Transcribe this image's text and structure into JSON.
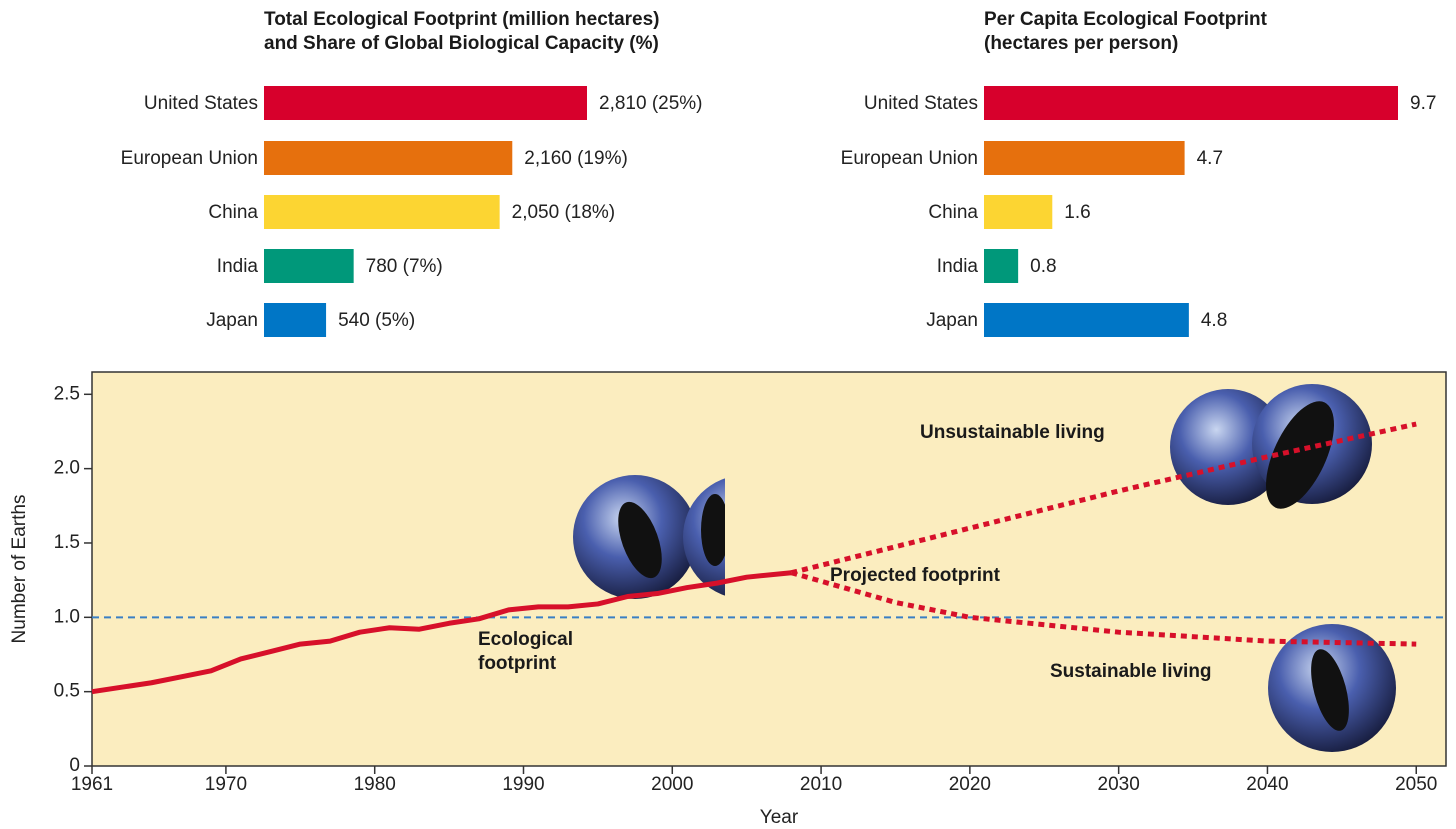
{
  "chart_data": [
    {
      "type": "bar",
      "orientation": "horizontal",
      "title": "Total Ecological Footprint (million hectares)\nand Share of Global Biological Capacity (%)",
      "categories": [
        "United States",
        "European Union",
        "China",
        "India",
        "Japan"
      ],
      "values": [
        2810,
        2160,
        2050,
        780,
        540
      ],
      "value_labels": [
        "2,810 (25%)",
        "2,160 (19%)",
        "2,050 (18%)",
        "780 (7%)",
        "540 (5%)"
      ],
      "colors": [
        "#d7002c",
        "#e6700d",
        "#fcd532",
        "#00987a",
        "#0076c6"
      ]
    },
    {
      "type": "bar",
      "orientation": "horizontal",
      "title": "Per Capita Ecological Footprint\n(hectares per person)",
      "categories": [
        "United States",
        "European Union",
        "China",
        "India",
        "Japan"
      ],
      "values": [
        9.7,
        4.7,
        1.6,
        0.8,
        4.8
      ],
      "colors": [
        "#d7002c",
        "#e6700d",
        "#fcd532",
        "#00987a",
        "#0076c6"
      ]
    },
    {
      "type": "line",
      "xlabel": "Year",
      "ylabel": "Number of Earths",
      "xlim": [
        1961,
        2052
      ],
      "ylim": [
        0,
        2.65
      ],
      "xticks": [
        1961,
        1970,
        1980,
        1990,
        2000,
        2010,
        2020,
        2030,
        2040,
        2050
      ],
      "yticks": [
        0,
        0.5,
        {
          "value": 1,
          "label": "1.0"
        },
        1.5,
        {
          "value": 2,
          "label": "2.0"
        },
        2.5
      ],
      "background": "#fbedbf",
      "series": [
        {
          "name": "Ecological footprint",
          "color": "#d7102a",
          "style": "solid",
          "x": [
            1961,
            1963,
            1965,
            1967,
            1969,
            1971,
            1973,
            1975,
            1977,
            1979,
            1981,
            1983,
            1985,
            1987,
            1989,
            1991,
            1993,
            1995,
            1997,
            1999,
            2001,
            2003,
            2005,
            2008
          ],
          "values": [
            0.5,
            0.53,
            0.56,
            0.6,
            0.64,
            0.72,
            0.77,
            0.82,
            0.84,
            0.9,
            0.93,
            0.92,
            0.96,
            0.99,
            1.05,
            1.07,
            1.07,
            1.09,
            1.14,
            1.16,
            1.2,
            1.23,
            1.27,
            1.3
          ]
        },
        {
          "name": "Unsustainable living",
          "color": "#d7102a",
          "style": "dashed",
          "x": [
            2008,
            2020,
            2030,
            2040,
            2050
          ],
          "values": [
            1.3,
            1.6,
            1.85,
            2.08,
            2.3
          ]
        },
        {
          "name": "Sustainable living",
          "color": "#d7102a",
          "style": "dashed",
          "x": [
            2008,
            2015,
            2020,
            2030,
            2040,
            2050
          ],
          "values": [
            1.3,
            1.1,
            1.0,
            0.9,
            0.84,
            0.82
          ]
        }
      ],
      "reference_lines": [
        {
          "value": 1,
          "color": "#3a7fc4",
          "style": "dashed"
        }
      ],
      "annotations": [
        "Projected footprint"
      ]
    }
  ]
}
